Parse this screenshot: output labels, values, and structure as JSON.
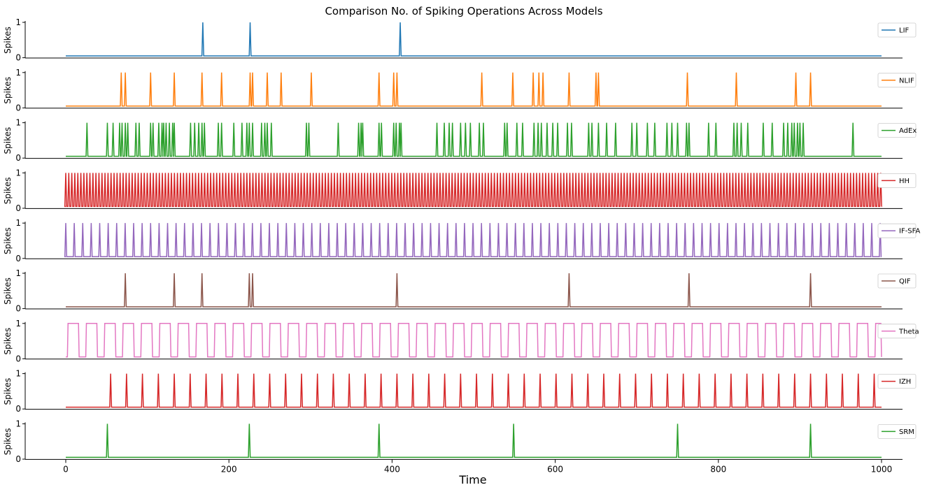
{
  "chart_data": {
    "type": "line",
    "title": "Comparison No. of Spiking Operations Across Models",
    "xlabel": "Time",
    "ylabel": "Spikes",
    "xlim": [
      0,
      1000
    ],
    "ylim": [
      0,
      1
    ],
    "xticks": [
      0,
      200,
      400,
      600,
      800,
      1000
    ],
    "yticks": [
      0,
      1
    ],
    "legend_position": "right",
    "series": [
      {
        "name": "LIF",
        "color": "#1f77b4",
        "mode": "spikes",
        "spike_times": [
          168,
          226,
          410
        ]
      },
      {
        "name": "NLIF",
        "color": "#ff7f0e",
        "mode": "spikes",
        "spike_times": [
          68,
          73,
          104,
          133,
          167,
          191,
          226,
          229,
          247,
          264,
          301,
          384,
          402,
          406,
          510,
          548,
          573,
          580,
          585,
          617,
          650,
          653,
          762,
          822,
          895,
          913
        ]
      },
      {
        "name": "AdEx",
        "color": "#2ca02c",
        "mode": "spikes",
        "spike_times": [
          26,
          51,
          58,
          66,
          69,
          73,
          76,
          86,
          90,
          104,
          107,
          114,
          118,
          120,
          123,
          127,
          131,
          133,
          153,
          158,
          163,
          167,
          170,
          187,
          191,
          206,
          216,
          222,
          225,
          229,
          240,
          244,
          247,
          252,
          295,
          298,
          334,
          359,
          362,
          364,
          384,
          387,
          402,
          405,
          409,
          411,
          455,
          464,
          470,
          474,
          484,
          490,
          496,
          507,
          512,
          538,
          541,
          553,
          560,
          574,
          579,
          583,
          590,
          597,
          603,
          615,
          620,
          641,
          645,
          653,
          663,
          674,
          694,
          700,
          713,
          722,
          737,
          743,
          750,
          761,
          764,
          788,
          797,
          819,
          823,
          828,
          836,
          855,
          866,
          880,
          885,
          890,
          893,
          897,
          900,
          904,
          965
        ]
      },
      {
        "name": "HH",
        "color": "#d62728",
        "mode": "spikes",
        "spike_times": [],
        "regular_interval": 3.7
      },
      {
        "name": "IF-SFA",
        "color": "#9467bd",
        "mode": "spikes",
        "spike_times": [],
        "regular_interval": 10.4
      },
      {
        "name": "QIF",
        "color": "#8c564b",
        "mode": "spikes",
        "spike_times": [
          73,
          133,
          167,
          225,
          229,
          406,
          617,
          764,
          913
        ]
      },
      {
        "name": "Theta",
        "color": "#e377c2",
        "mode": "square",
        "start": 2,
        "period": 22.5,
        "duty": 0.64
      },
      {
        "name": "IZH",
        "color": "#d62728",
        "mode": "spikes",
        "spike_times": [],
        "regular_start": 55,
        "regular_interval": 19.5
      },
      {
        "name": "SRM",
        "color": "#2ca02c",
        "mode": "spikes",
        "spike_times": [
          51,
          225,
          384,
          549,
          750,
          913
        ]
      }
    ]
  }
}
